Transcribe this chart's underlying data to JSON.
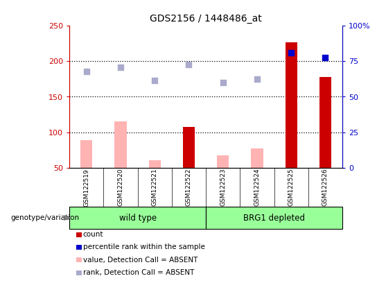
{
  "title": "GDS2156 / 1448486_at",
  "samples": [
    "GSM122519",
    "GSM122520",
    "GSM122521",
    "GSM122522",
    "GSM122523",
    "GSM122524",
    "GSM122525",
    "GSM122526"
  ],
  "count_values": [
    null,
    null,
    null,
    107,
    null,
    null,
    226,
    178
  ],
  "count_color": "#cc0000",
  "absent_value_bars": [
    89,
    115,
    61,
    null,
    68,
    77,
    null,
    null
  ],
  "absent_value_color": "#ffb3b3",
  "rank_dots": [
    185,
    191,
    173,
    195,
    170,
    175,
    null,
    null
  ],
  "rank_dots_color": "#aaaacc",
  "percentile_dots": [
    null,
    null,
    null,
    null,
    null,
    null,
    212,
    205
  ],
  "percentile_dots_color": "#0000cc",
  "ylim_left": [
    50,
    250
  ],
  "ylim_right": [
    0,
    100
  ],
  "right_ticks": [
    0,
    25,
    50,
    75,
    100
  ],
  "right_tick_labels": [
    "0",
    "25",
    "50",
    "75",
    "100%"
  ],
  "left_ticks": [
    50,
    100,
    150,
    200,
    250
  ],
  "dotted_lines": [
    100,
    150,
    200
  ],
  "group1_label": "wild type",
  "group2_label": "BRG1 depleted",
  "group1_range": [
    0,
    3
  ],
  "group2_range": [
    4,
    7
  ],
  "genotype_label": "genotype/variation",
  "legend_items": [
    {
      "label": "count",
      "color": "#cc0000"
    },
    {
      "label": "percentile rank within the sample",
      "color": "#0000cc"
    },
    {
      "label": "value, Detection Call = ABSENT",
      "color": "#ffb3b3"
    },
    {
      "label": "rank, Detection Call = ABSENT",
      "color": "#aaaacc"
    }
  ],
  "background_color": "#ffffff",
  "group_bg_color": "#99ff99",
  "sample_bg_color": "#cccccc",
  "bar_width": 0.35
}
